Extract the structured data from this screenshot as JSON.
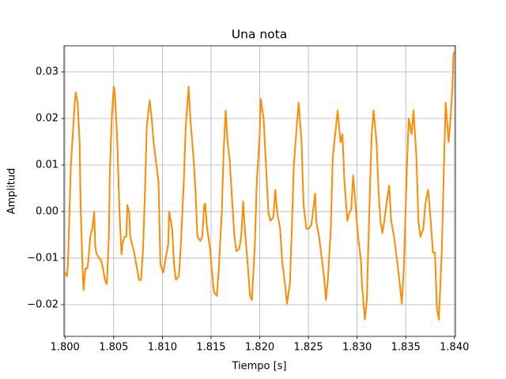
{
  "chart_data": {
    "type": "line",
    "title": "Una nota",
    "x_label": "Tiempo [s]",
    "y_label": "Amplitud",
    "x": [
      1.8,
      1.8002,
      1.8003,
      1.8005,
      1.8006,
      1.8008,
      1.801,
      1.8011,
      1.8013,
      1.8015,
      1.8016,
      1.8018,
      1.8019,
      1.8021,
      1.8023,
      1.8024,
      1.8026,
      1.8028,
      1.803,
      1.8031,
      1.8032,
      1.8034,
      1.8037,
      1.8039,
      1.8041,
      1.8043,
      1.8045,
      1.8046,
      1.8048,
      1.805,
      1.8051,
      1.8053,
      1.8054,
      1.8056,
      1.8058,
      1.8059,
      1.8061,
      1.8063,
      1.8064,
      1.8066,
      1.8067,
      1.8069,
      1.8071,
      1.8074,
      1.8076,
      1.8078,
      1.808,
      1.8082,
      1.8084,
      1.8087,
      1.8089,
      1.8091,
      1.8093,
      1.8094,
      1.8096,
      1.8098,
      1.8101,
      1.8103,
      1.8106,
      1.8107,
      1.811,
      1.8112,
      1.8114,
      1.8117,
      1.8119,
      1.8122,
      1.8124,
      1.8127,
      1.8129,
      1.8132,
      1.8134,
      1.8136,
      1.8139,
      1.8141,
      1.8143,
      1.8144,
      1.8146,
      1.8149,
      1.8151,
      1.8153,
      1.8156,
      1.8158,
      1.8161,
      1.8163,
      1.8165,
      1.8167,
      1.8169,
      1.8171,
      1.8174,
      1.8176,
      1.8179,
      1.8181,
      1.8183,
      1.8185,
      1.8188,
      1.819,
      1.8192,
      1.8195,
      1.8197,
      1.82,
      1.8201,
      1.8204,
      1.8206,
      1.8209,
      1.8211,
      1.8214,
      1.8216,
      1.8218,
      1.8221,
      1.8223,
      1.8226,
      1.8228,
      1.8231,
      1.8233,
      1.8235,
      1.8238,
      1.824,
      1.8243,
      1.8245,
      1.8248,
      1.825,
      1.8253,
      1.8257,
      1.8258,
      1.8261,
      1.8263,
      1.8266,
      1.8268,
      1.827,
      1.8273,
      1.8275,
      1.8278,
      1.828,
      1.8283,
      1.8285,
      1.8287,
      1.829,
      1.8292,
      1.8294,
      1.8296,
      1.8299,
      1.8301,
      1.8304,
      1.8305,
      1.8308,
      1.831,
      1.8313,
      1.8315,
      1.8317,
      1.832,
      1.8322,
      1.8324,
      1.8326,
      1.8328,
      1.833,
      1.8333,
      1.8335,
      1.8338,
      1.834,
      1.8343,
      1.8346,
      1.8348,
      1.8351,
      1.8353,
      1.8356,
      1.8358,
      1.8361,
      1.8363,
      1.8365,
      1.8368,
      1.837,
      1.8373,
      1.8375,
      1.8378,
      1.838,
      1.8382,
      1.8384,
      1.8387,
      1.8389,
      1.8391,
      1.8394,
      1.8396,
      1.8398,
      1.8399,
      1.84
    ],
    "series": [
      {
        "color": "#ff8c00",
        "values": [
          -0.0131,
          -0.0139,
          -0.0114,
          0.0031,
          0.0098,
          0.0166,
          0.0234,
          0.0256,
          0.0234,
          0.0149,
          0.0014,
          -0.0122,
          -0.0169,
          -0.0122,
          -0.0122,
          -0.0105,
          -0.0054,
          -0.0037,
          0.0,
          -0.0071,
          -0.0088,
          -0.0097,
          -0.0105,
          -0.0122,
          -0.0147,
          -0.0156,
          -0.0054,
          0.0081,
          0.02,
          0.0268,
          0.0259,
          0.0183,
          0.0132,
          -0.0003,
          -0.0092,
          -0.0071,
          -0.0054,
          -0.0054,
          0.0014,
          -0.0003,
          -0.0054,
          -0.0071,
          -0.0088,
          -0.0122,
          -0.0147,
          -0.0147,
          -0.0088,
          0.0031,
          0.0183,
          0.0239,
          0.02,
          0.0149,
          0.0115,
          0.0098,
          0.0064,
          -0.0114,
          -0.0131,
          -0.0105,
          -0.0071,
          0.0,
          -0.0037,
          -0.0114,
          -0.0147,
          -0.0139,
          -0.0071,
          0.0064,
          0.0183,
          0.0268,
          0.0192,
          0.0115,
          0.0047,
          -0.0054,
          -0.0063,
          -0.0054,
          0.0014,
          0.0017,
          -0.0037,
          -0.008,
          -0.0131,
          -0.0173,
          -0.0181,
          -0.0122,
          -0.0003,
          0.0132,
          0.0217,
          0.0149,
          0.0115,
          0.0047,
          -0.0054,
          -0.0085,
          -0.008,
          -0.0054,
          0.0022,
          -0.0046,
          -0.0122,
          -0.0181,
          -0.019,
          -0.0071,
          0.0064,
          0.0166,
          0.0242,
          0.02,
          0.0115,
          -0.0003,
          -0.002,
          -0.0012,
          0.0047,
          -0.0003,
          -0.0037,
          -0.0105,
          -0.0156,
          -0.0198,
          -0.0156,
          -0.0037,
          0.0098,
          0.0183,
          0.0234,
          0.0149,
          0.0014,
          -0.0037,
          -0.0037,
          -0.0029,
          0.0039,
          -0.002,
          -0.0054,
          -0.0088,
          -0.0139,
          -0.019,
          -0.0147,
          -0.0037,
          0.0115,
          0.0175,
          0.0217,
          0.0149,
          0.0166,
          0.0064,
          -0.002,
          -0.0003,
          0.0005,
          0.0078,
          -0.0003,
          -0.0054,
          -0.0105,
          -0.0156,
          -0.0232,
          -0.019,
          0.0031,
          0.0166,
          0.0217,
          0.0149,
          0.0047,
          -0.002,
          -0.0046,
          -0.002,
          0.0014,
          0.0056,
          -0.002,
          -0.0054,
          -0.0088,
          -0.0139,
          -0.0198,
          -0.0122,
          0.0081,
          0.02,
          0.0166,
          0.0217,
          0.0115,
          -0.002,
          -0.0054,
          -0.0037,
          0.0014,
          0.0047,
          -0.0003,
          -0.0088,
          -0.0088,
          -0.0207,
          -0.0232,
          -0.0088,
          0.0081,
          0.0234,
          0.0149,
          0.02,
          0.0268,
          0.0336,
          0.0344
        ]
      }
    ],
    "xlim": [
      1.7999,
      1.8401
    ],
    "ylim": [
      -0.0268,
      0.0356
    ],
    "xticks": [
      {
        "value": 1.8,
        "label": "1.800"
      },
      {
        "value": 1.805,
        "label": "1.805"
      },
      {
        "value": 1.81,
        "label": "1.810"
      },
      {
        "value": 1.815,
        "label": "1.815"
      },
      {
        "value": 1.82,
        "label": "1.820"
      },
      {
        "value": 1.825,
        "label": "1.825"
      },
      {
        "value": 1.83,
        "label": "1.830"
      },
      {
        "value": 1.835,
        "label": "1.835"
      },
      {
        "value": 1.84,
        "label": "1.840"
      }
    ],
    "yticks": [
      {
        "value": -0.02,
        "label": "−0.02"
      },
      {
        "value": -0.01,
        "label": "−0.01"
      },
      {
        "value": 0,
        "label": "0.00"
      },
      0.01,
      0.02,
      0.03
    ],
    "grid": true
  }
}
